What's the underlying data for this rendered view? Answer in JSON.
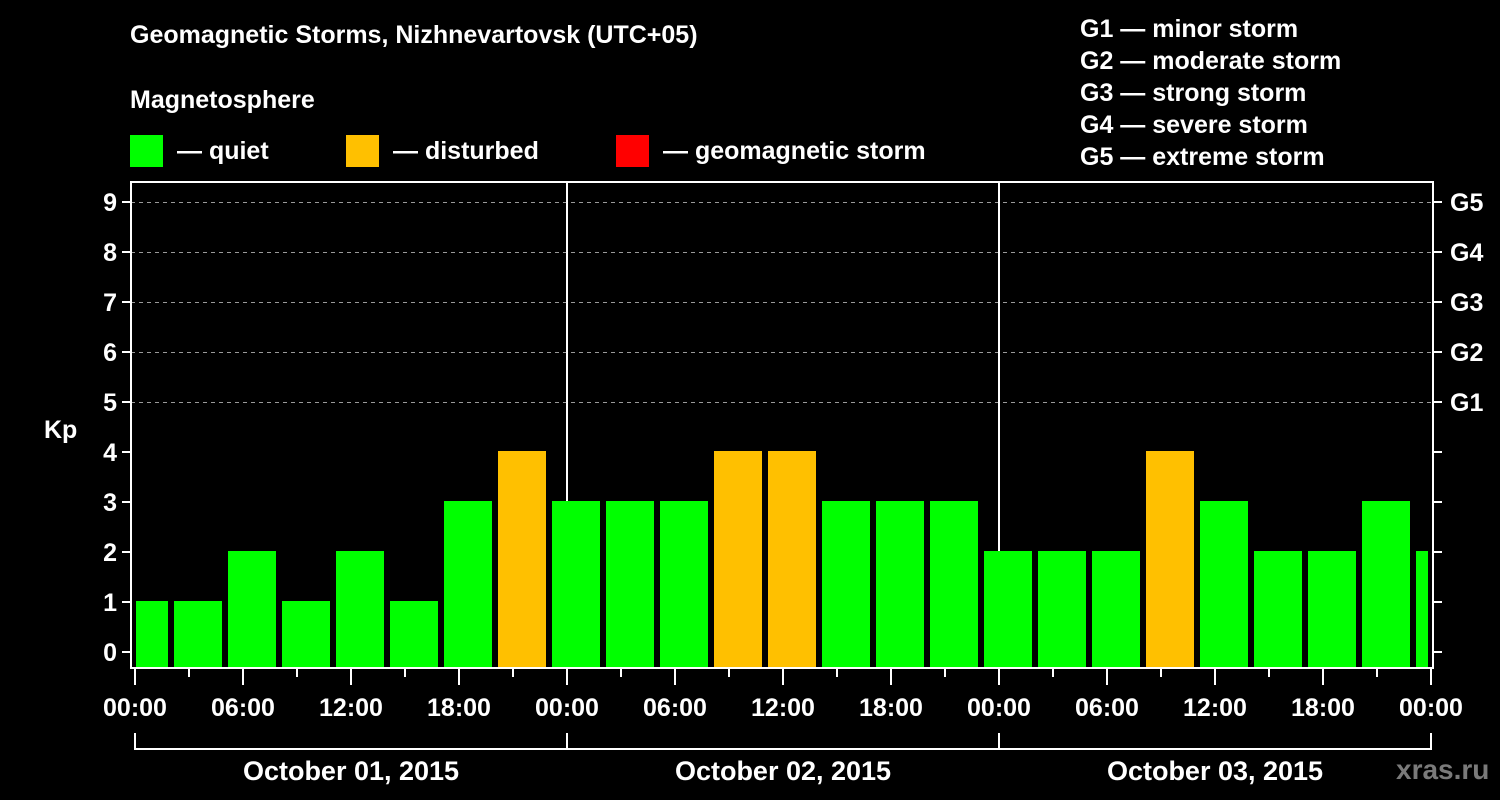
{
  "title": "Geomagnetic Storms, Nizhnevartovsk (UTC+05)",
  "subtitle": "Magnetosphere",
  "legend": [
    {
      "label": "— quiet",
      "color": "#00ff00"
    },
    {
      "label": "— disturbed",
      "color": "#ffc000"
    },
    {
      "label": "— geomagnetic storm",
      "color": "#ff0000"
    }
  ],
  "storm_scale": [
    "G1 — minor storm",
    "G2 — moderate storm",
    "G3 — strong storm",
    "G4 — severe storm",
    "G5 — extreme storm"
  ],
  "watermark": "xras.ru",
  "chart_data": {
    "type": "bar",
    "title": "Geomagnetic Storms, Nizhnevartovsk (UTC+05)",
    "xlabel": "",
    "ylabel": "Kp",
    "ylim": [
      0,
      9
    ],
    "y_ticks": [
      0,
      1,
      2,
      3,
      4,
      5,
      6,
      7,
      8,
      9
    ],
    "right_axis_ticks": [
      {
        "kp": 5,
        "label": "G1"
      },
      {
        "kp": 6,
        "label": "G2"
      },
      {
        "kp": 7,
        "label": "G3"
      },
      {
        "kp": 8,
        "label": "G4"
      },
      {
        "kp": 9,
        "label": "G5"
      }
    ],
    "grid": "dashed horizontal at Kp 5-9",
    "x_tick_labels": [
      "00:00",
      "06:00",
      "12:00",
      "18:00",
      "00:00",
      "06:00",
      "12:00",
      "18:00",
      "00:00",
      "06:00",
      "12:00",
      "18:00",
      "00:00"
    ],
    "days": [
      "October 01, 2015",
      "October 02, 2015",
      "October 03, 2015"
    ],
    "interval_hours": 3,
    "colors": {
      "quiet": "#00ff00",
      "disturbed": "#ffc000",
      "storm": "#ff0000"
    },
    "values": [
      1,
      1,
      2,
      1,
      2,
      1,
      3,
      4,
      3,
      3,
      3,
      4,
      4,
      3,
      3,
      3,
      2,
      2,
      2,
      4,
      3,
      2,
      2,
      3,
      2
    ],
    "categories_status": [
      "quiet",
      "quiet",
      "quiet",
      "quiet",
      "quiet",
      "quiet",
      "quiet",
      "disturbed",
      "quiet",
      "quiet",
      "quiet",
      "disturbed",
      "disturbed",
      "quiet",
      "quiet",
      "quiet",
      "quiet",
      "quiet",
      "quiet",
      "disturbed",
      "quiet",
      "quiet",
      "quiet",
      "quiet",
      "quiet"
    ]
  }
}
